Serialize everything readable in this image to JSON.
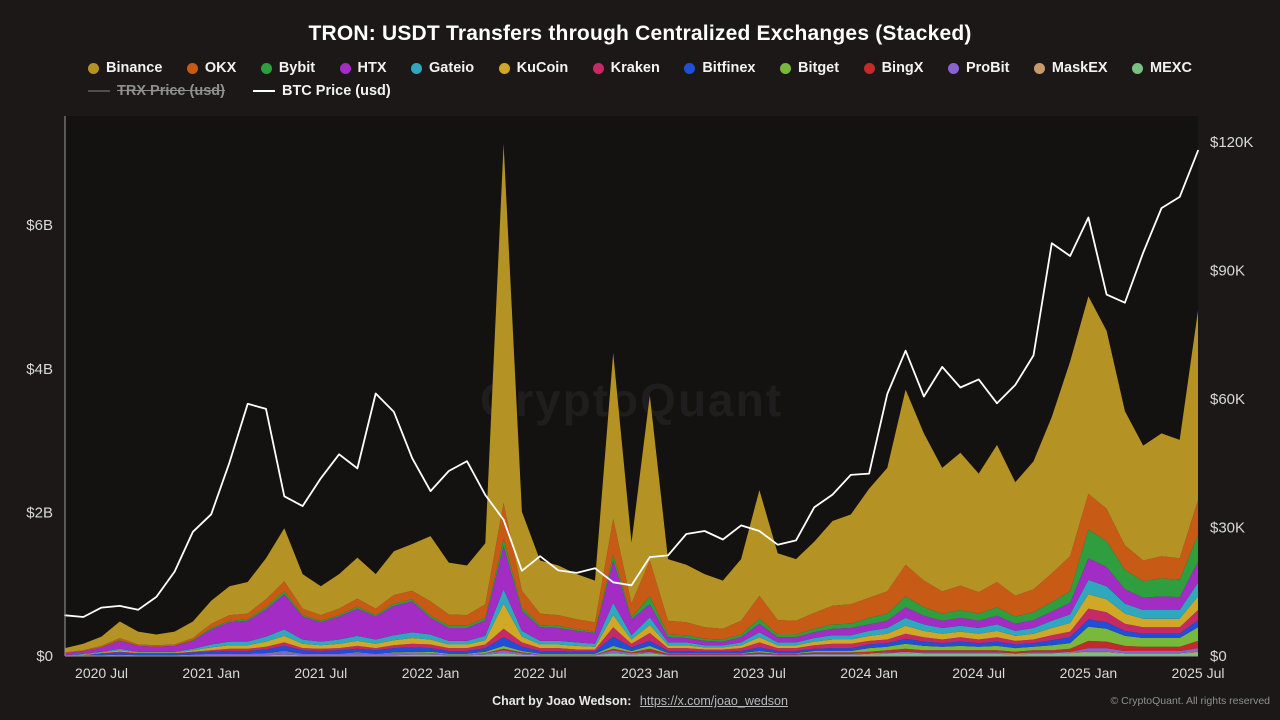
{
  "page": {
    "title": "TRON: USDT Transfers through Centralized Exchanges (Stacked)",
    "watermark": "CryptoQuant",
    "footer": {
      "credit_label": "Chart by Joao Wedson:",
      "credit_link": "https://x.com/joao_wedson",
      "copyright": "© CryptoQuant. All rights reserved"
    }
  },
  "colors": {
    "background": "#1c1818",
    "plot_background": "#141111",
    "axis_line": "#9b9b9b",
    "axis_text": "#d9d9d9",
    "btc_line": "#ffffff"
  },
  "chart_data": {
    "type": "area",
    "stacked": true,
    "title": "TRON: USDT Transfers through Centralized Exchanges (Stacked)",
    "x": [
      "2020-05",
      "2020-06",
      "2020-07",
      "2020-08",
      "2020-09",
      "2020-10",
      "2020-11",
      "2020-12",
      "2021-01",
      "2021-02",
      "2021-03",
      "2021-04",
      "2021-05",
      "2021-06",
      "2021-07",
      "2021-08",
      "2021-09",
      "2021-10",
      "2021-11",
      "2021-12",
      "2022-01",
      "2022-02",
      "2022-03",
      "2022-04",
      "2022-05",
      "2022-06",
      "2022-07",
      "2022-08",
      "2022-09",
      "2022-10",
      "2022-11",
      "2022-12",
      "2023-01",
      "2023-02",
      "2023-03",
      "2023-04",
      "2023-05",
      "2023-06",
      "2023-07",
      "2023-08",
      "2023-09",
      "2023-10",
      "2023-11",
      "2023-12",
      "2024-01",
      "2024-02",
      "2024-03",
      "2024-04",
      "2024-05",
      "2024-06",
      "2024-07",
      "2024-08",
      "2024-09",
      "2024-10",
      "2024-11",
      "2024-12",
      "2025-01",
      "2025-02",
      "2025-03",
      "2025-04",
      "2025-05",
      "2025-06",
      "2025-07"
    ],
    "x_tick_labels": [
      "2020 Jul",
      "2021 Jan",
      "2021 Jul",
      "2022 Jan",
      "2022 Jul",
      "2023 Jan",
      "2023 Jul",
      "2024 Jan",
      "2024 Jul",
      "2025 Jan",
      "2025 Jul"
    ],
    "x_tick_indices": [
      2,
      8,
      14,
      20,
      26,
      32,
      38,
      44,
      50,
      56,
      62
    ],
    "left_axis": {
      "unit": "USD (billions)",
      "labels": [
        "$0",
        "$2B",
        "$4B",
        "$6B"
      ],
      "values": [
        0,
        2,
        4,
        6
      ],
      "plot_max": 7.52
    },
    "right_axis": {
      "unit": "USD (thousands)",
      "labels": [
        "$0",
        "$30K",
        "$60K",
        "$90K",
        "$120K"
      ],
      "values": [
        0,
        30,
        60,
        90,
        120
      ],
      "plot_max": 126.1
    },
    "grid": false,
    "legend_position": "top",
    "series": [
      {
        "name": "Binance",
        "color": "#b49324",
        "values": [
          0.06,
          0.09,
          0.13,
          0.23,
          0.18,
          0.15,
          0.18,
          0.23,
          0.32,
          0.4,
          0.44,
          0.57,
          0.74,
          0.48,
          0.4,
          0.48,
          0.57,
          0.48,
          0.61,
          0.65,
          0.91,
          0.72,
          0.69,
          0.85,
          5.0,
          1.1,
          0.74,
          0.69,
          0.63,
          0.58,
          2.31,
          0.85,
          2.3,
          0.86,
          0.8,
          0.74,
          0.67,
          0.86,
          1.47,
          0.93,
          0.86,
          0.99,
          1.18,
          1.25,
          1.52,
          1.72,
          2.44,
          2.05,
          1.72,
          1.85,
          1.65,
          1.91,
          1.58,
          1.78,
          2.18,
          2.71,
          2.75,
          2.48,
          1.87,
          1.6,
          1.71,
          1.65,
          2.64
        ]
      },
      {
        "name": "OKX",
        "color": "#c75b16",
        "values": [
          0.01,
          0.01,
          0.02,
          0.03,
          0.02,
          0.02,
          0.02,
          0.03,
          0.06,
          0.08,
          0.08,
          0.11,
          0.14,
          0.09,
          0.08,
          0.09,
          0.11,
          0.09,
          0.12,
          0.12,
          0.2,
          0.16,
          0.15,
          0.19,
          0.5,
          0.24,
          0.16,
          0.15,
          0.14,
          0.13,
          0.5,
          0.19,
          0.5,
          0.19,
          0.18,
          0.16,
          0.15,
          0.19,
          0.32,
          0.2,
          0.19,
          0.22,
          0.26,
          0.27,
          0.28,
          0.31,
          0.44,
          0.37,
          0.31,
          0.34,
          0.3,
          0.35,
          0.29,
          0.32,
          0.4,
          0.49,
          0.5,
          0.45,
          0.34,
          0.29,
          0.31,
          0.3,
          0.48
        ]
      },
      {
        "name": "Bybit",
        "color": "#2f9e3f",
        "values": [
          0.0,
          0.0,
          0.0,
          0.01,
          0.0,
          0.0,
          0.0,
          0.01,
          0.02,
          0.02,
          0.02,
          0.03,
          0.04,
          0.02,
          0.02,
          0.02,
          0.03,
          0.02,
          0.03,
          0.03,
          0.03,
          0.03,
          0.03,
          0.03,
          0.1,
          0.04,
          0.03,
          0.03,
          0.02,
          0.02,
          0.08,
          0.03,
          0.11,
          0.04,
          0.04,
          0.03,
          0.03,
          0.04,
          0.07,
          0.04,
          0.04,
          0.05,
          0.06,
          0.06,
          0.09,
          0.1,
          0.15,
          0.12,
          0.1,
          0.11,
          0.1,
          0.12,
          0.1,
          0.11,
          0.13,
          0.16,
          0.4,
          0.36,
          0.27,
          0.23,
          0.25,
          0.24,
          0.38
        ]
      },
      {
        "name": "HTX",
        "color": "#a32cc4",
        "values": [
          0.03,
          0.04,
          0.06,
          0.11,
          0.08,
          0.07,
          0.08,
          0.11,
          0.21,
          0.27,
          0.29,
          0.38,
          0.49,
          0.32,
          0.27,
          0.32,
          0.38,
          0.32,
          0.41,
          0.43,
          0.23,
          0.18,
          0.18,
          0.22,
          0.6,
          0.28,
          0.19,
          0.18,
          0.16,
          0.15,
          0.59,
          0.22,
          0.18,
          0.07,
          0.06,
          0.06,
          0.05,
          0.07,
          0.12,
          0.07,
          0.07,
          0.08,
          0.09,
          0.1,
          0.09,
          0.1,
          0.15,
          0.12,
          0.1,
          0.11,
          0.1,
          0.12,
          0.1,
          0.11,
          0.13,
          0.16,
          0.3,
          0.27,
          0.2,
          0.17,
          0.19,
          0.18,
          0.29
        ]
      },
      {
        "name": "Gateio",
        "color": "#2fa8bd",
        "values": [
          0.0,
          0.01,
          0.01,
          0.02,
          0.01,
          0.01,
          0.01,
          0.02,
          0.04,
          0.05,
          0.05,
          0.07,
          0.09,
          0.06,
          0.05,
          0.06,
          0.07,
          0.06,
          0.07,
          0.08,
          0.07,
          0.05,
          0.05,
          0.06,
          0.2,
          0.08,
          0.05,
          0.05,
          0.05,
          0.04,
          0.17,
          0.06,
          0.11,
          0.04,
          0.04,
          0.03,
          0.03,
          0.04,
          0.07,
          0.04,
          0.04,
          0.05,
          0.06,
          0.06,
          0.07,
          0.08,
          0.11,
          0.09,
          0.08,
          0.08,
          0.08,
          0.09,
          0.07,
          0.08,
          0.1,
          0.12,
          0.2,
          0.18,
          0.14,
          0.12,
          0.12,
          0.12,
          0.19
        ]
      },
      {
        "name": "KuCoin",
        "color": "#cfa827",
        "values": [
          0.0,
          0.01,
          0.01,
          0.02,
          0.01,
          0.01,
          0.01,
          0.02,
          0.04,
          0.05,
          0.05,
          0.07,
          0.09,
          0.06,
          0.05,
          0.06,
          0.07,
          0.06,
          0.07,
          0.08,
          0.07,
          0.05,
          0.05,
          0.06,
          0.35,
          0.08,
          0.05,
          0.05,
          0.05,
          0.04,
          0.17,
          0.06,
          0.11,
          0.04,
          0.04,
          0.03,
          0.03,
          0.04,
          0.07,
          0.04,
          0.04,
          0.05,
          0.06,
          0.06,
          0.07,
          0.08,
          0.11,
          0.09,
          0.08,
          0.08,
          0.08,
          0.09,
          0.07,
          0.08,
          0.1,
          0.12,
          0.2,
          0.18,
          0.14,
          0.12,
          0.12,
          0.12,
          0.19
        ]
      },
      {
        "name": "Kraken",
        "color": "#c52a66",
        "values": [
          0.0,
          0.0,
          0.01,
          0.01,
          0.01,
          0.01,
          0.01,
          0.01,
          0.02,
          0.03,
          0.03,
          0.04,
          0.05,
          0.03,
          0.03,
          0.03,
          0.04,
          0.03,
          0.04,
          0.05,
          0.05,
          0.04,
          0.04,
          0.05,
          0.12,
          0.06,
          0.04,
          0.04,
          0.03,
          0.03,
          0.13,
          0.05,
          0.11,
          0.04,
          0.04,
          0.03,
          0.03,
          0.04,
          0.07,
          0.04,
          0.04,
          0.05,
          0.06,
          0.06,
          0.05,
          0.05,
          0.07,
          0.06,
          0.05,
          0.06,
          0.05,
          0.06,
          0.05,
          0.05,
          0.07,
          0.08,
          0.15,
          0.14,
          0.1,
          0.09,
          0.09,
          0.09,
          0.14
        ]
      },
      {
        "name": "Bitfinex",
        "color": "#1f4fd8",
        "values": [
          0.01,
          0.01,
          0.02,
          0.03,
          0.02,
          0.02,
          0.02,
          0.03,
          0.03,
          0.04,
          0.04,
          0.05,
          0.07,
          0.05,
          0.04,
          0.05,
          0.05,
          0.05,
          0.06,
          0.06,
          0.05,
          0.04,
          0.04,
          0.05,
          0.12,
          0.06,
          0.04,
          0.04,
          0.03,
          0.03,
          0.13,
          0.05,
          0.07,
          0.03,
          0.03,
          0.02,
          0.02,
          0.03,
          0.05,
          0.03,
          0.03,
          0.03,
          0.04,
          0.04,
          0.05,
          0.05,
          0.07,
          0.06,
          0.05,
          0.06,
          0.05,
          0.06,
          0.05,
          0.05,
          0.07,
          0.08,
          0.1,
          0.09,
          0.07,
          0.06,
          0.06,
          0.06,
          0.1
        ]
      },
      {
        "name": "Bitget",
        "color": "#78b93c",
        "values": [
          0,
          0,
          0,
          0,
          0,
          0,
          0,
          0,
          0,
          0,
          0,
          0,
          0.01,
          0,
          0,
          0,
          0.01,
          0,
          0.01,
          0.01,
          0.02,
          0.01,
          0.01,
          0.02,
          0.04,
          0.02,
          0.01,
          0.01,
          0.01,
          0.01,
          0.04,
          0.02,
          0.04,
          0.01,
          0.01,
          0.01,
          0.01,
          0.01,
          0.02,
          0.01,
          0.01,
          0.02,
          0.02,
          0.02,
          0.05,
          0.05,
          0.07,
          0.06,
          0.05,
          0.06,
          0.05,
          0.06,
          0.05,
          0.05,
          0.07,
          0.08,
          0.2,
          0.18,
          0.14,
          0.12,
          0.12,
          0.12,
          0.19
        ]
      },
      {
        "name": "BingX",
        "color": "#c42a2a",
        "values": [
          0,
          0,
          0,
          0,
          0,
          0,
          0,
          0,
          0,
          0,
          0,
          0,
          0,
          0,
          0,
          0,
          0,
          0,
          0,
          0,
          0,
          0,
          0,
          0,
          0.02,
          0.01,
          0,
          0,
          0,
          0,
          0.02,
          0.01,
          0.04,
          0.01,
          0.01,
          0.01,
          0.01,
          0.01,
          0.02,
          0.01,
          0.01,
          0.02,
          0.02,
          0.02,
          0.02,
          0.03,
          0.04,
          0.03,
          0.03,
          0.03,
          0.03,
          0.03,
          0.02,
          0.03,
          0.03,
          0.04,
          0.1,
          0.09,
          0.07,
          0.06,
          0.06,
          0.06,
          0.1
        ]
      },
      {
        "name": "ProBit",
        "color": "#8a63d2",
        "values": [
          0.0,
          0.0,
          0.01,
          0.01,
          0.01,
          0.01,
          0.01,
          0.01,
          0.02,
          0.02,
          0.02,
          0.03,
          0.04,
          0.02,
          0.02,
          0.02,
          0.03,
          0.02,
          0.03,
          0.03,
          0.02,
          0.01,
          0.01,
          0.02,
          0.04,
          0.02,
          0.01,
          0.01,
          0.01,
          0.01,
          0.04,
          0.02,
          0.02,
          0.01,
          0.01,
          0.01,
          0.01,
          0.01,
          0.01,
          0.01,
          0.01,
          0.01,
          0.01,
          0.01,
          0.01,
          0.01,
          0.01,
          0.01,
          0.01,
          0.01,
          0.01,
          0.01,
          0.01,
          0.01,
          0.01,
          0.01,
          0.05,
          0.05,
          0.03,
          0.03,
          0.03,
          0.03,
          0.05
        ]
      },
      {
        "name": "MaskEX",
        "color": "#c9996b",
        "values": [
          0,
          0,
          0,
          0,
          0,
          0,
          0,
          0,
          0,
          0,
          0,
          0,
          0,
          0,
          0,
          0,
          0,
          0,
          0,
          0,
          0,
          0,
          0,
          0,
          0,
          0,
          0,
          0,
          0,
          0,
          0,
          0,
          0,
          0,
          0,
          0,
          0,
          0,
          0,
          0,
          0,
          0,
          0,
          0,
          0.01,
          0.01,
          0.01,
          0.01,
          0.01,
          0.01,
          0.01,
          0.01,
          0.01,
          0.01,
          0.01,
          0.01,
          0.01,
          0.01,
          0.01,
          0.01,
          0.01,
          0.01,
          0.01
        ]
      },
      {
        "name": "MEXC",
        "color": "#77c183",
        "values": [
          0.0,
          0.0,
          0.0,
          0.01,
          0.0,
          0.0,
          0.0,
          0.01,
          0.01,
          0.01,
          0.01,
          0.01,
          0.02,
          0.01,
          0.01,
          0.01,
          0.01,
          0.01,
          0.01,
          0.02,
          0.02,
          0.01,
          0.01,
          0.02,
          0.04,
          0.02,
          0.01,
          0.01,
          0.01,
          0.01,
          0.04,
          0.02,
          0.04,
          0.01,
          0.01,
          0.01,
          0.01,
          0.01,
          0.02,
          0.01,
          0.01,
          0.02,
          0.02,
          0.02,
          0.02,
          0.03,
          0.04,
          0.03,
          0.03,
          0.03,
          0.03,
          0.03,
          0.02,
          0.03,
          0.03,
          0.04,
          0.05,
          0.05,
          0.03,
          0.03,
          0.03,
          0.03,
          0.05
        ]
      }
    ],
    "overlay_lines": [
      {
        "name": "TRX Price (usd)",
        "color": "#8f8f8f",
        "axis": "right",
        "disabled": true,
        "values": null
      },
      {
        "name": "BTC Price (usd)",
        "color": "#ffffff",
        "axis": "right",
        "disabled": false,
        "values": [
          9.5,
          9.1,
          11.3,
          11.7,
          10.8,
          13.8,
          19.7,
          29.0,
          33.1,
          45.2,
          58.9,
          57.7,
          37.3,
          35.0,
          41.5,
          47.1,
          43.8,
          61.3,
          57.0,
          46.2,
          38.5,
          43.2,
          45.5,
          37.6,
          31.8,
          19.9,
          23.3,
          20.0,
          19.4,
          20.5,
          17.2,
          16.5,
          23.1,
          23.5,
          28.5,
          29.2,
          27.2,
          30.5,
          29.2,
          26.0,
          27.0,
          34.7,
          37.7,
          42.3,
          42.6,
          61.2,
          71.3,
          60.6,
          67.5,
          62.7,
          64.6,
          59.0,
          63.3,
          70.2,
          96.4,
          93.4,
          102.4,
          84.4,
          82.5,
          94.2,
          104.6,
          107.2,
          118.0
        ]
      }
    ]
  }
}
